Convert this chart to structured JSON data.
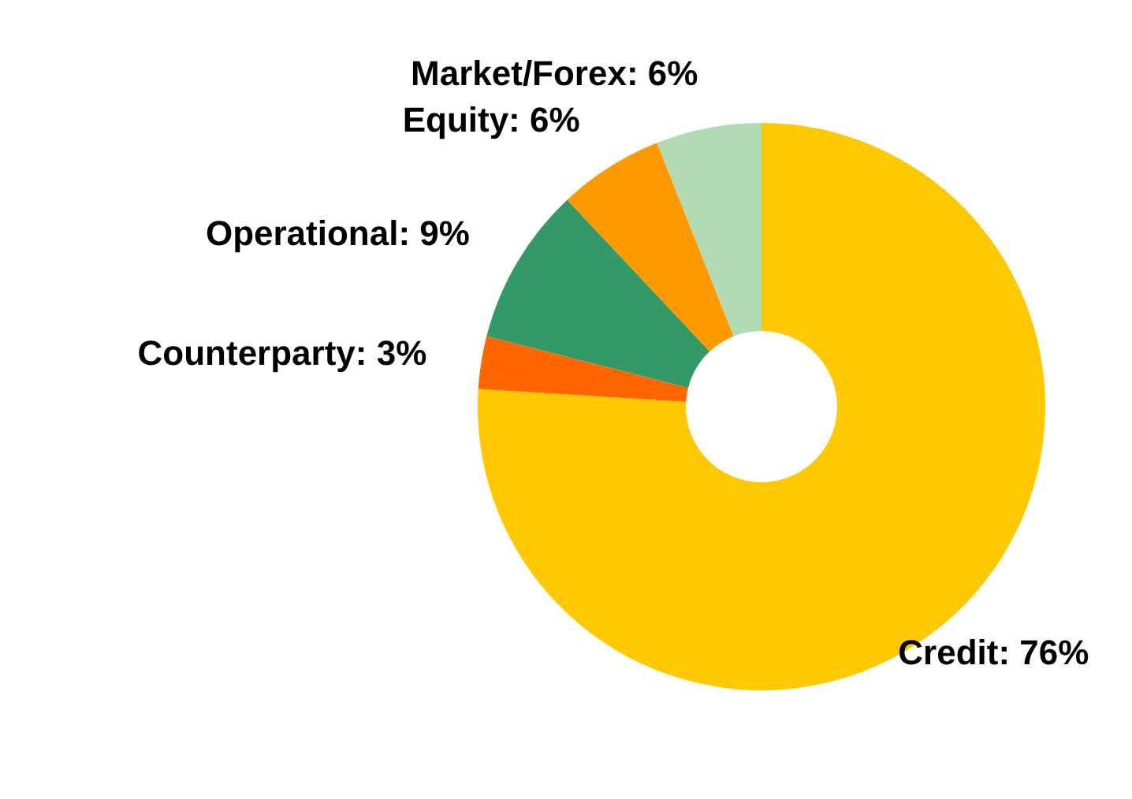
{
  "chart_data": {
    "type": "donut",
    "categories": [
      "Credit",
      "Counterparty",
      "Operational",
      "Equity",
      "Market/Forex"
    ],
    "values": [
      76,
      3,
      9,
      6,
      6
    ],
    "value_labels": [
      "76%",
      "3%",
      "9%",
      "6%",
      "6%"
    ],
    "colors": [
      "#ffc800",
      "#ff6600",
      "#339966",
      "#ff9900",
      "#b3dbb3"
    ]
  }
}
